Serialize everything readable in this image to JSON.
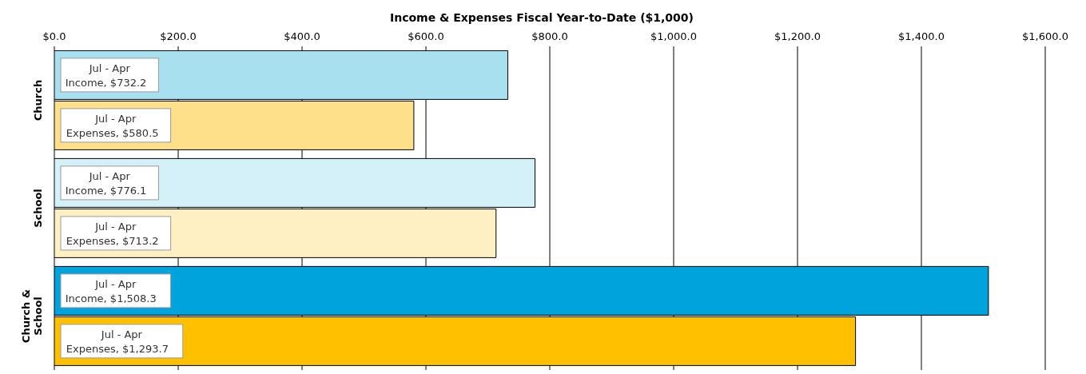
{
  "chart_data": {
    "type": "bar",
    "orientation": "horizontal",
    "xlabel": "Income & Expenses Fiscal Year-to-Date ($1,000)",
    "categories": [
      "Church",
      "School",
      "Church & School"
    ],
    "series": [
      {
        "name": "Income",
        "colors": [
          "#a8e0f0",
          "#d4f0f8",
          "#00a3dc"
        ],
        "values": [
          732.2,
          776.1,
          1508.3
        ],
        "value_labels": [
          ", $732.2",
          ", $776.1",
          ", $1,508.3"
        ]
      },
      {
        "name": "Expenses",
        "colors": [
          "#ffe08a",
          "#fff0c4",
          "#ffc000"
        ],
        "values": [
          580.5,
          713.2,
          1293.7
        ],
        "value_labels": [
          ", $580.5",
          ", $713.2",
          ", $1,293.7"
        ]
      }
    ],
    "xlim": [
      0,
      1600
    ],
    "xticks": [
      {
        "value": 0,
        "label": "$0.0"
      },
      {
        "value": 200,
        "label": "$200.0"
      },
      {
        "value": 400,
        "label": "$400.0"
      },
      {
        "value": 600,
        "label": "$600.0"
      },
      {
        "value": 800,
        "label": "$800.0"
      },
      {
        "value": 1000,
        "label": "$1,000.0"
      },
      {
        "value": 1200,
        "label": "$1,200.0"
      },
      {
        "value": 1400,
        "label": "$1,400.0"
      },
      {
        "value": 1600,
        "label": "$1,600.0"
      }
    ],
    "annotations": [
      "Jul - Apr",
      "Jul - Apr",
      "Jul - Apr",
      "Jul - Apr",
      "Jul - Apr",
      "Jul - Apr"
    ],
    "grid": "x",
    "legend": false
  }
}
